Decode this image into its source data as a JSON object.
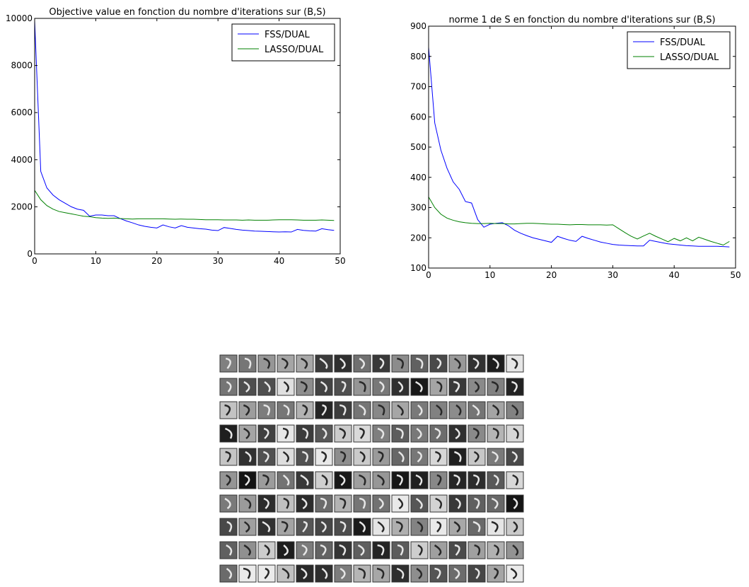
{
  "chart_data": [
    {
      "type": "line",
      "title": "Objective value en fonction du nombre d'iterations sur (B,S)",
      "x": [
        0,
        1,
        2,
        3,
        4,
        5,
        6,
        7,
        8,
        9,
        10,
        11,
        12,
        13,
        14,
        15,
        16,
        17,
        18,
        19,
        20,
        21,
        22,
        23,
        24,
        25,
        26,
        27,
        28,
        29,
        30,
        31,
        32,
        33,
        34,
        35,
        36,
        37,
        38,
        39,
        40,
        41,
        42,
        43,
        44,
        45,
        46,
        47,
        48,
        49
      ],
      "series": [
        {
          "name": "FSS/DUAL",
          "color": "#0000ff",
          "values": [
            9900,
            3500,
            2800,
            2500,
            2300,
            2150,
            2000,
            1900,
            1850,
            1600,
            1650,
            1650,
            1620,
            1620,
            1500,
            1400,
            1320,
            1230,
            1170,
            1130,
            1100,
            1230,
            1150,
            1100,
            1200,
            1130,
            1100,
            1070,
            1050,
            1010,
            990,
            1120,
            1080,
            1040,
            1010,
            990,
            970,
            960,
            950,
            940,
            930,
            940,
            930,
            1040,
            1000,
            980,
            970,
            1070,
            1030,
            1000
          ]
        },
        {
          "name": "LASSO/DUAL",
          "color": "#008000",
          "values": [
            2700,
            2300,
            2050,
            1900,
            1800,
            1750,
            1700,
            1650,
            1600,
            1580,
            1540,
            1520,
            1510,
            1520,
            1500,
            1490,
            1480,
            1490,
            1490,
            1490,
            1490,
            1490,
            1480,
            1470,
            1480,
            1470,
            1470,
            1460,
            1450,
            1450,
            1450,
            1440,
            1440,
            1440,
            1430,
            1440,
            1430,
            1430,
            1430,
            1440,
            1450,
            1450,
            1450,
            1440,
            1430,
            1430,
            1430,
            1440,
            1430,
            1420
          ]
        }
      ],
      "xlim": [
        0,
        50
      ],
      "xticks": [
        0,
        10,
        20,
        30,
        40,
        50
      ],
      "ylim": [
        0,
        10000
      ],
      "yticks": [
        0,
        2000,
        4000,
        6000,
        8000,
        10000
      ],
      "grid": false,
      "legend": "upper right"
    },
    {
      "type": "line",
      "title": "norme 1 de S en fonction du nombre d'iterations sur (B,S)",
      "x": [
        0,
        1,
        2,
        3,
        4,
        5,
        6,
        7,
        8,
        9,
        10,
        11,
        12,
        13,
        14,
        15,
        16,
        17,
        18,
        19,
        20,
        21,
        22,
        23,
        24,
        25,
        26,
        27,
        28,
        29,
        30,
        31,
        32,
        33,
        34,
        35,
        36,
        37,
        38,
        39,
        40,
        41,
        42,
        43,
        44,
        45,
        46,
        47,
        48,
        49
      ],
      "series": [
        {
          "name": "FSS/DUAL",
          "color": "#0000ff",
          "values": [
            830,
            580,
            490,
            430,
            385,
            360,
            320,
            315,
            260,
            235,
            245,
            248,
            250,
            240,
            225,
            215,
            207,
            200,
            195,
            190,
            185,
            205,
            198,
            192,
            188,
            205,
            198,
            192,
            186,
            182,
            178,
            176,
            175,
            174,
            173,
            173,
            192,
            188,
            184,
            180,
            178,
            176,
            174,
            173,
            172,
            172,
            172,
            172,
            171,
            170
          ]
        },
        {
          "name": "LASSO/DUAL",
          "color": "#008000",
          "values": [
            335,
            300,
            278,
            265,
            258,
            253,
            250,
            248,
            247,
            247,
            248,
            247,
            247,
            246,
            246,
            247,
            248,
            248,
            247,
            246,
            245,
            245,
            244,
            243,
            244,
            244,
            243,
            243,
            243,
            242,
            243,
            230,
            217,
            205,
            196,
            206,
            215,
            205,
            196,
            187,
            198,
            190,
            200,
            190,
            202,
            195,
            188,
            182,
            176,
            188
          ]
        }
      ],
      "xlim": [
        0,
        50
      ],
      "xticks": [
        0,
        10,
        20,
        30,
        40,
        50
      ],
      "ylim": [
        100,
        900
      ],
      "yticks": [
        100,
        200,
        300,
        400,
        500,
        600,
        700,
        800,
        900
      ],
      "grid": false,
      "legend": "upper right"
    }
  ]
}
